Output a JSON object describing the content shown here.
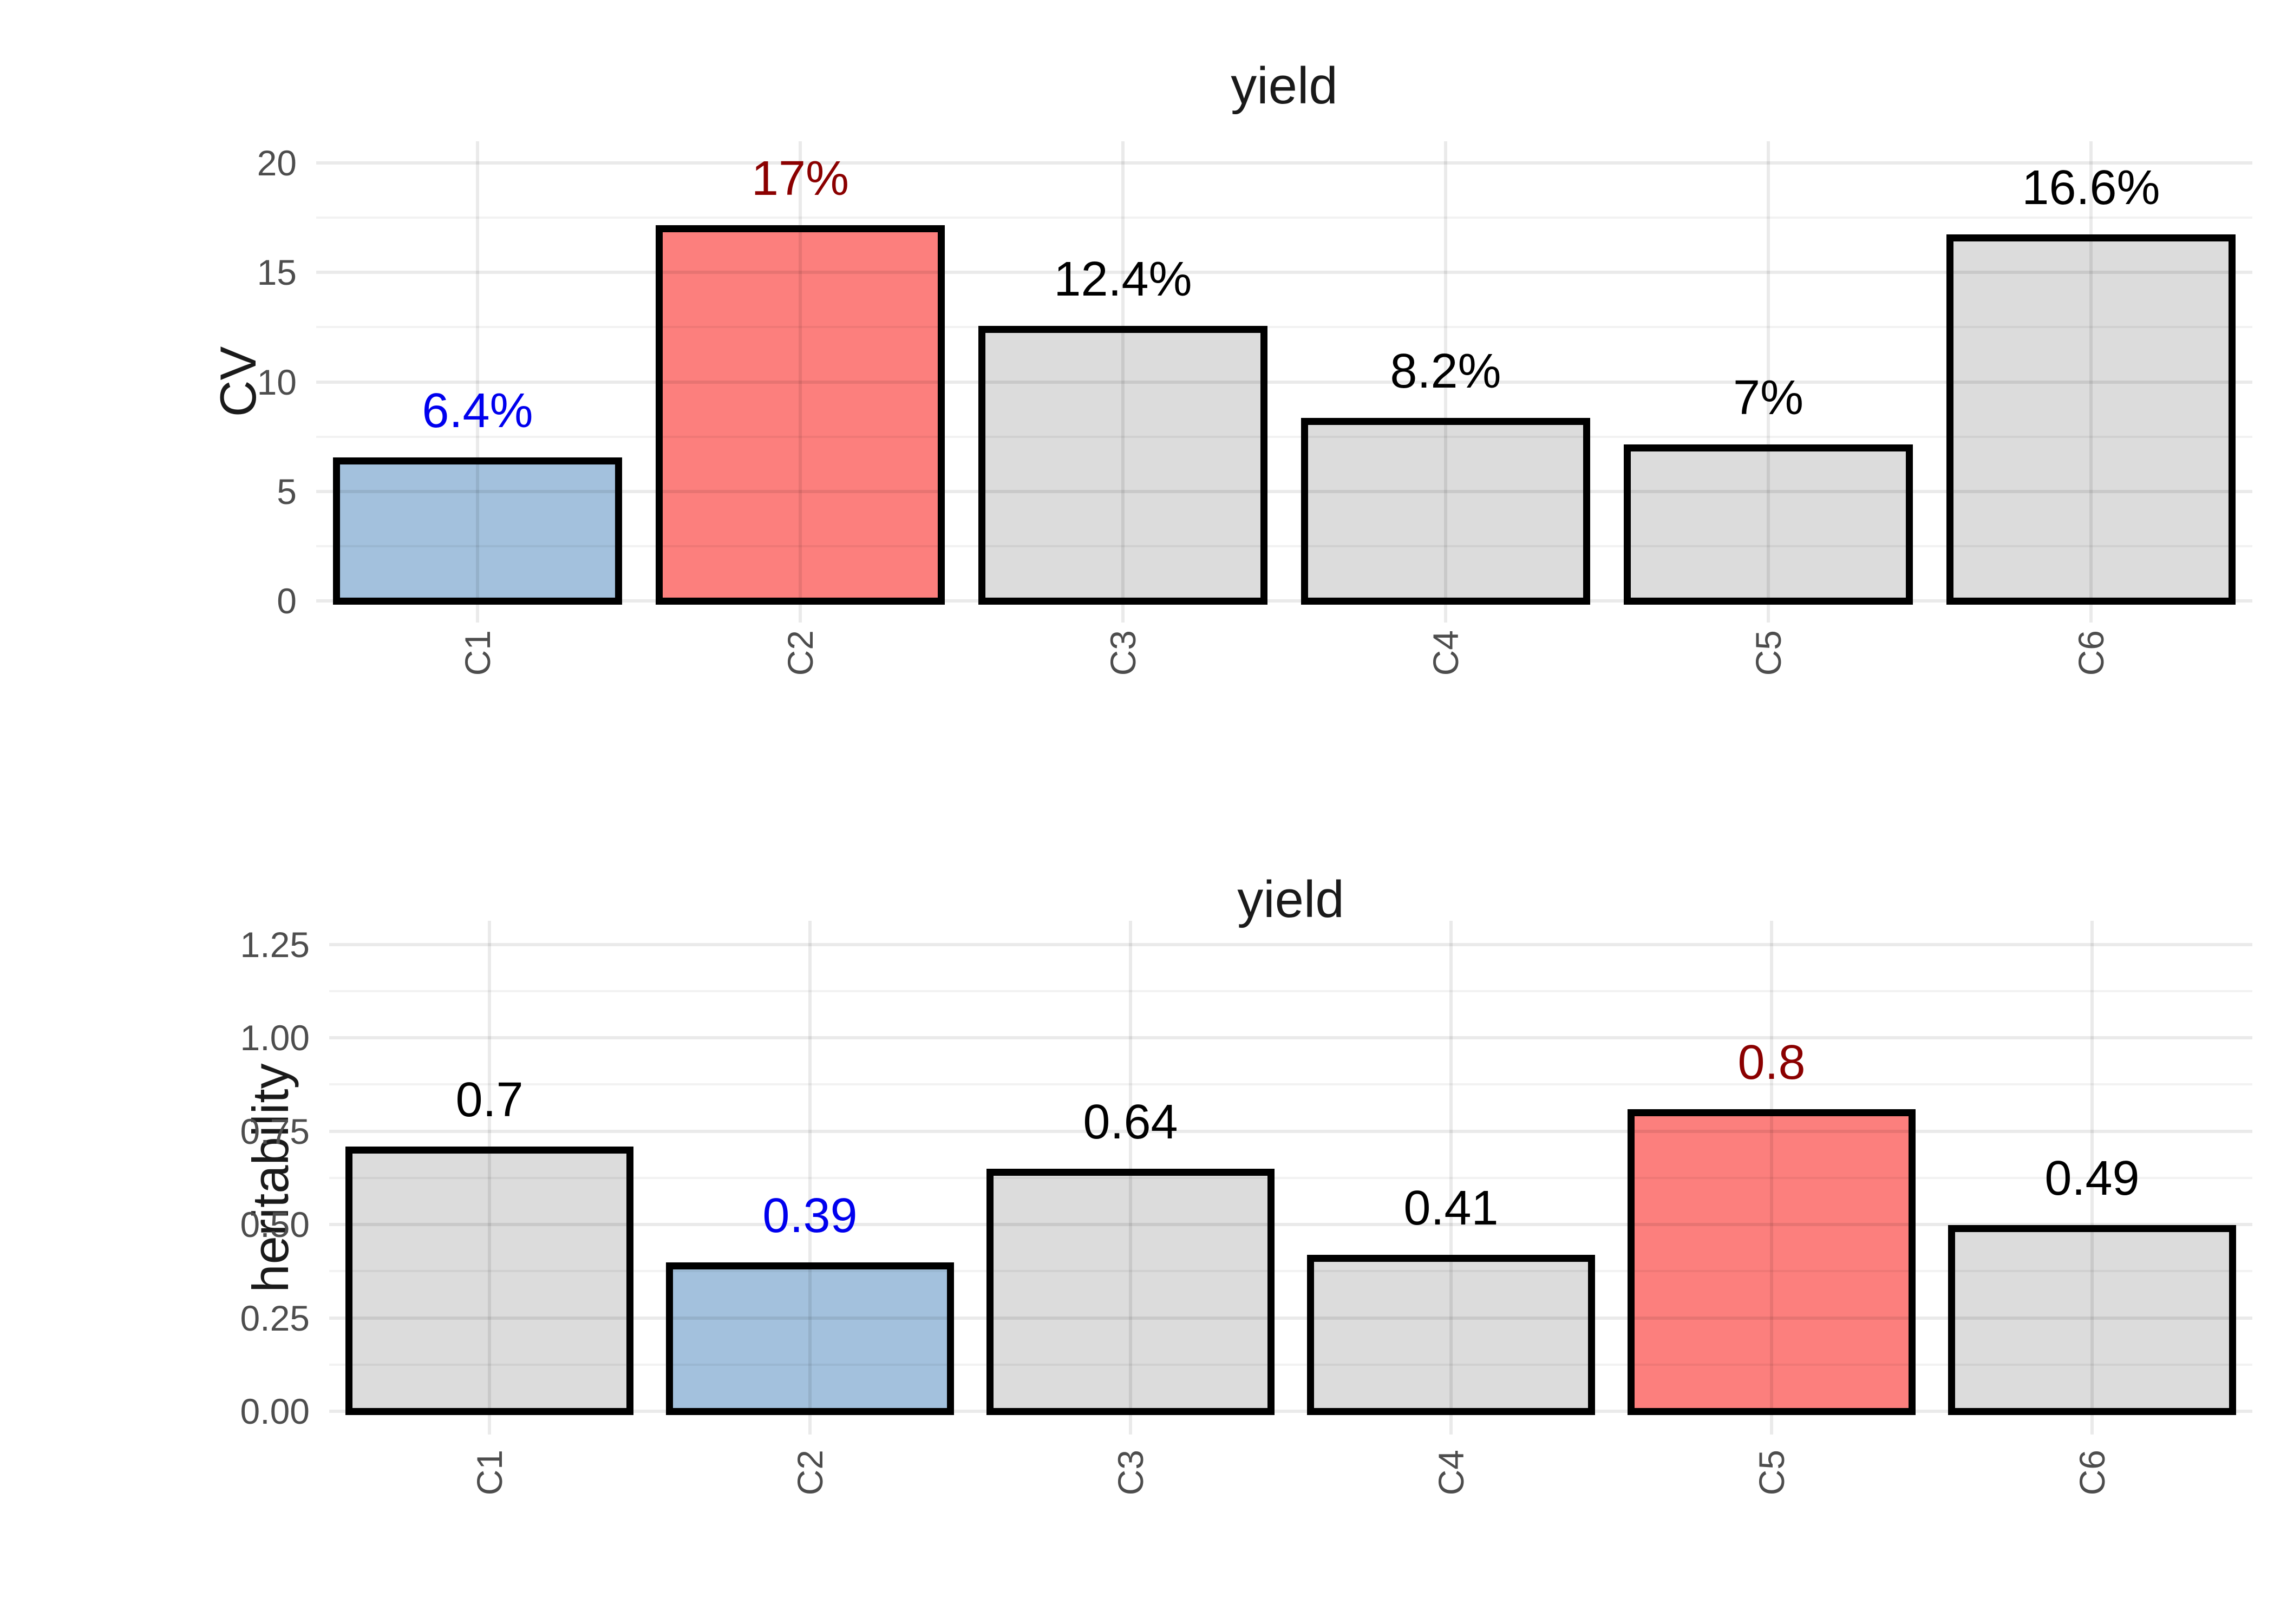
{
  "figure": {
    "background_color": "#FFFFFF",
    "text_color_ticks": "#4D4D4D",
    "text_color_titles": "#1A1A1A",
    "grid_major_color": "#EBEBEB",
    "grid_minor_color": "#F2F2F2",
    "bar_border_color": "#000000",
    "highlight_max_color": "#FC7F7D",
    "highlight_min_color": "#A3C1DD",
    "default_bar_color": "#DCDCDC",
    "min_label_color": "#0000EE",
    "max_label_color": "#8B0000"
  },
  "chart_data": [
    {
      "type": "bar",
      "title": "yield",
      "ylabel": "CV",
      "xlabel": "",
      "categories": [
        "C1",
        "C2",
        "C3",
        "C4",
        "C5",
        "C6"
      ],
      "values": [
        6.4,
        17,
        12.4,
        8.2,
        7,
        16.6
      ],
      "bar_labels": [
        "6.4%",
        "17%",
        "12.4%",
        "8.2%",
        "7%",
        "16.6%"
      ],
      "bar_label_colors": [
        "#0000EE",
        "#8B0000",
        "#000000",
        "#000000",
        "#000000",
        "#000000"
      ],
      "bar_fill_colors": [
        "#A3C1DD",
        "#FC7F7D",
        "#DCDCDC",
        "#DCDCDC",
        "#DCDCDC",
        "#DCDCDC"
      ],
      "ylim": [
        0,
        20
      ],
      "yticks": [
        0,
        5,
        10,
        15,
        20
      ],
      "ytick_labels": [
        "0",
        "5",
        "10",
        "15",
        "20"
      ],
      "grid": "major and minor horizontal, major vertical at category centers",
      "legend_position": "none",
      "x_tick_rotation_deg": 90
    },
    {
      "type": "bar",
      "title": "yield",
      "ylabel": "heritability",
      "xlabel": "",
      "categories": [
        "C1",
        "C2",
        "C3",
        "C4",
        "C5",
        "C6"
      ],
      "values": [
        0.7,
        0.39,
        0.64,
        0.41,
        0.8,
        0.49
      ],
      "bar_labels": [
        "0.7",
        "0.39",
        "0.64",
        "0.41",
        "0.8",
        "0.49"
      ],
      "bar_label_colors": [
        "#000000",
        "#0000EE",
        "#000000",
        "#000000",
        "#8B0000",
        "#000000"
      ],
      "bar_fill_colors": [
        "#DCDCDC",
        "#A3C1DD",
        "#DCDCDC",
        "#DCDCDC",
        "#FC7F7D",
        "#DCDCDC"
      ],
      "ylim": [
        0,
        1.25
      ],
      "yticks": [
        0,
        0.25,
        0.5,
        0.75,
        1.0,
        1.25
      ],
      "ytick_labels": [
        "0.00",
        "0.25",
        "0.50",
        "0.75",
        "1.00",
        "1.25"
      ],
      "grid": "major and minor horizontal, major vertical at category centers",
      "legend_position": "none",
      "x_tick_rotation_deg": 90
    }
  ]
}
